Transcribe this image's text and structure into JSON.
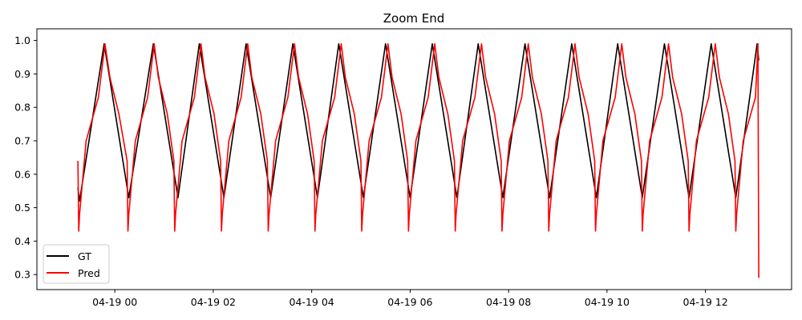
{
  "chart_data": {
    "type": "line",
    "title": "Zoom End",
    "xlabel": "",
    "ylabel": "",
    "x_start": "04-18 23:15",
    "x_end": "04-19 13:15",
    "xlim": [
      "04-18 22:25",
      "04-19 13:45"
    ],
    "ylim": [
      0.255,
      1.035
    ],
    "x_ticks": [
      "04-19 00:00",
      "04-19 02:00",
      "04-19 04:00",
      "04-19 06:00",
      "04-19 08:00",
      "04-19 10:00",
      "04-19 12:00"
    ],
    "x_tick_labels": [
      "04-19 00",
      "04-19 02",
      "04-19 04",
      "04-19 06",
      "04-19 08",
      "04-19 10",
      "04-19 12"
    ],
    "y_ticks": [
      0.3,
      0.4,
      0.5,
      0.6,
      0.7,
      0.8,
      0.9,
      1.0
    ],
    "y_tick_labels": [
      "0.3",
      "0.4",
      "0.5",
      "0.6",
      "0.7",
      "0.8",
      "0.9",
      "1.0"
    ],
    "grid": false,
    "legend_position": "lower-left",
    "series": [
      {
        "name": "GT",
        "color": "#000000",
        "points": [
          [
            "04-18 23:15",
            0.56
          ],
          [
            "04-18 23:17",
            0.52
          ],
          [
            "04-18 23:47",
            0.99
          ],
          [
            "04-19 00:17",
            0.53
          ],
          [
            "04-19 00:47",
            0.99
          ],
          [
            "04-19 01:17",
            0.53
          ],
          [
            "04-19 01:43",
            0.99
          ],
          [
            "04-19 02:13",
            0.53
          ],
          [
            "04-19 02:40",
            0.99
          ],
          [
            "04-19 03:10",
            0.53
          ],
          [
            "04-19 03:37",
            0.99
          ],
          [
            "04-19 04:07",
            0.53
          ],
          [
            "04-19 04:33",
            0.99
          ],
          [
            "04-19 05:03",
            0.53
          ],
          [
            "04-19 05:30",
            0.99
          ],
          [
            "04-19 06:00",
            0.53
          ],
          [
            "04-19 06:27",
            0.99
          ],
          [
            "04-19 06:57",
            0.53
          ],
          [
            "04-19 07:23",
            0.99
          ],
          [
            "04-19 07:53",
            0.53
          ],
          [
            "04-19 08:20",
            0.99
          ],
          [
            "04-19 08:50",
            0.53
          ],
          [
            "04-19 09:17",
            0.99
          ],
          [
            "04-19 09:47",
            0.53
          ],
          [
            "04-19 10:13",
            0.99
          ],
          [
            "04-19 10:43",
            0.53
          ],
          [
            "04-19 11:10",
            0.99
          ],
          [
            "04-19 11:40",
            0.53
          ],
          [
            "04-19 12:07",
            0.99
          ],
          [
            "04-19 12:37",
            0.53
          ],
          [
            "04-19 13:03",
            0.99
          ],
          [
            "04-19 13:05",
            0.94
          ]
        ]
      },
      {
        "name": "Pred",
        "color": "#ff0000",
        "points": [
          [
            "04-18 23:15",
            0.64
          ],
          [
            "04-18 23:16",
            0.43
          ],
          [
            "04-18 23:17",
            0.48
          ],
          [
            "04-18 23:25",
            0.7
          ],
          [
            "04-18 23:40",
            0.83
          ],
          [
            "04-18 23:48",
            0.99
          ],
          [
            "04-18 23:54",
            0.89
          ],
          [
            "04-19 00:05",
            0.78
          ],
          [
            "04-19 00:15",
            0.64
          ],
          [
            "04-19 00:16",
            0.43
          ],
          [
            "04-19 00:17",
            0.48
          ],
          [
            "04-19 00:25",
            0.7
          ],
          [
            "04-19 00:40",
            0.83
          ],
          [
            "04-19 00:48",
            0.99
          ],
          [
            "04-19 00:53",
            0.89
          ],
          [
            "04-19 01:04",
            0.78
          ],
          [
            "04-19 01:12",
            0.64
          ],
          [
            "04-19 01:13",
            0.43
          ],
          [
            "04-19 01:14",
            0.48
          ],
          [
            "04-19 01:22",
            0.7
          ],
          [
            "04-19 01:37",
            0.83
          ],
          [
            "04-19 01:45",
            0.99
          ],
          [
            "04-19 01:50",
            0.89
          ],
          [
            "04-19 02:01",
            0.78
          ],
          [
            "04-19 02:09",
            0.64
          ],
          [
            "04-19 02:10",
            0.43
          ],
          [
            "04-19 02:11",
            0.48
          ],
          [
            "04-19 02:19",
            0.7
          ],
          [
            "04-19 02:34",
            0.83
          ],
          [
            "04-19 02:42",
            0.99
          ],
          [
            "04-19 02:47",
            0.89
          ],
          [
            "04-19 02:58",
            0.78
          ],
          [
            "04-19 03:06",
            0.64
          ],
          [
            "04-19 03:07",
            0.43
          ],
          [
            "04-19 03:08",
            0.48
          ],
          [
            "04-19 03:16",
            0.7
          ],
          [
            "04-19 03:31",
            0.83
          ],
          [
            "04-19 03:39",
            0.99
          ],
          [
            "04-19 03:44",
            0.89
          ],
          [
            "04-19 03:55",
            0.78
          ],
          [
            "04-19 04:03",
            0.64
          ],
          [
            "04-19 04:04",
            0.43
          ],
          [
            "04-19 04:05",
            0.48
          ],
          [
            "04-19 04:13",
            0.7
          ],
          [
            "04-19 04:28",
            0.83
          ],
          [
            "04-19 04:36",
            0.99
          ],
          [
            "04-19 04:41",
            0.89
          ],
          [
            "04-19 04:52",
            0.78
          ],
          [
            "04-19 05:00",
            0.64
          ],
          [
            "04-19 05:01",
            0.43
          ],
          [
            "04-19 05:02",
            0.48
          ],
          [
            "04-19 05:10",
            0.7
          ],
          [
            "04-19 05:25",
            0.83
          ],
          [
            "04-19 05:33",
            0.99
          ],
          [
            "04-19 05:38",
            0.89
          ],
          [
            "04-19 05:49",
            0.78
          ],
          [
            "04-19 05:57",
            0.64
          ],
          [
            "04-19 05:58",
            0.43
          ],
          [
            "04-19 05:59",
            0.48
          ],
          [
            "04-19 06:07",
            0.7
          ],
          [
            "04-19 06:22",
            0.83
          ],
          [
            "04-19 06:30",
            0.99
          ],
          [
            "04-19 06:35",
            0.89
          ],
          [
            "04-19 06:46",
            0.78
          ],
          [
            "04-19 06:54",
            0.64
          ],
          [
            "04-19 06:55",
            0.43
          ],
          [
            "04-19 06:56",
            0.48
          ],
          [
            "04-19 07:04",
            0.7
          ],
          [
            "04-19 07:19",
            0.83
          ],
          [
            "04-19 07:27",
            0.99
          ],
          [
            "04-19 07:32",
            0.89
          ],
          [
            "04-19 07:43",
            0.78
          ],
          [
            "04-19 07:51",
            0.64
          ],
          [
            "04-19 07:52",
            0.43
          ],
          [
            "04-19 07:53",
            0.48
          ],
          [
            "04-19 08:01",
            0.7
          ],
          [
            "04-19 08:16",
            0.83
          ],
          [
            "04-19 08:24",
            0.99
          ],
          [
            "04-19 08:29",
            0.89
          ],
          [
            "04-19 08:40",
            0.78
          ],
          [
            "04-19 08:48",
            0.64
          ],
          [
            "04-19 08:49",
            0.43
          ],
          [
            "04-19 08:50",
            0.48
          ],
          [
            "04-19 08:58",
            0.7
          ],
          [
            "04-19 09:13",
            0.83
          ],
          [
            "04-19 09:21",
            0.99
          ],
          [
            "04-19 09:26",
            0.89
          ],
          [
            "04-19 09:37",
            0.78
          ],
          [
            "04-19 09:45",
            0.64
          ],
          [
            "04-19 09:46",
            0.43
          ],
          [
            "04-19 09:47",
            0.48
          ],
          [
            "04-19 09:55",
            0.7
          ],
          [
            "04-19 10:10",
            0.83
          ],
          [
            "04-19 10:18",
            0.99
          ],
          [
            "04-19 10:23",
            0.89
          ],
          [
            "04-19 10:34",
            0.78
          ],
          [
            "04-19 10:42",
            0.64
          ],
          [
            "04-19 10:43",
            0.43
          ],
          [
            "04-19 10:44",
            0.48
          ],
          [
            "04-19 10:52",
            0.7
          ],
          [
            "04-19 11:07",
            0.83
          ],
          [
            "04-19 11:15",
            0.99
          ],
          [
            "04-19 11:20",
            0.89
          ],
          [
            "04-19 11:31",
            0.78
          ],
          [
            "04-19 11:39",
            0.64
          ],
          [
            "04-19 11:40",
            0.43
          ],
          [
            "04-19 11:41",
            0.48
          ],
          [
            "04-19 11:49",
            0.7
          ],
          [
            "04-19 12:04",
            0.83
          ],
          [
            "04-19 12:12",
            0.99
          ],
          [
            "04-19 12:17",
            0.89
          ],
          [
            "04-19 12:28",
            0.78
          ],
          [
            "04-19 12:36",
            0.64
          ],
          [
            "04-19 12:37",
            0.43
          ],
          [
            "04-19 12:38",
            0.48
          ],
          [
            "04-19 12:46",
            0.7
          ],
          [
            "04-19 13:01",
            0.83
          ],
          [
            "04-19 13:04",
            0.99
          ],
          [
            "04-19 13:05",
            0.29
          ]
        ]
      }
    ]
  }
}
